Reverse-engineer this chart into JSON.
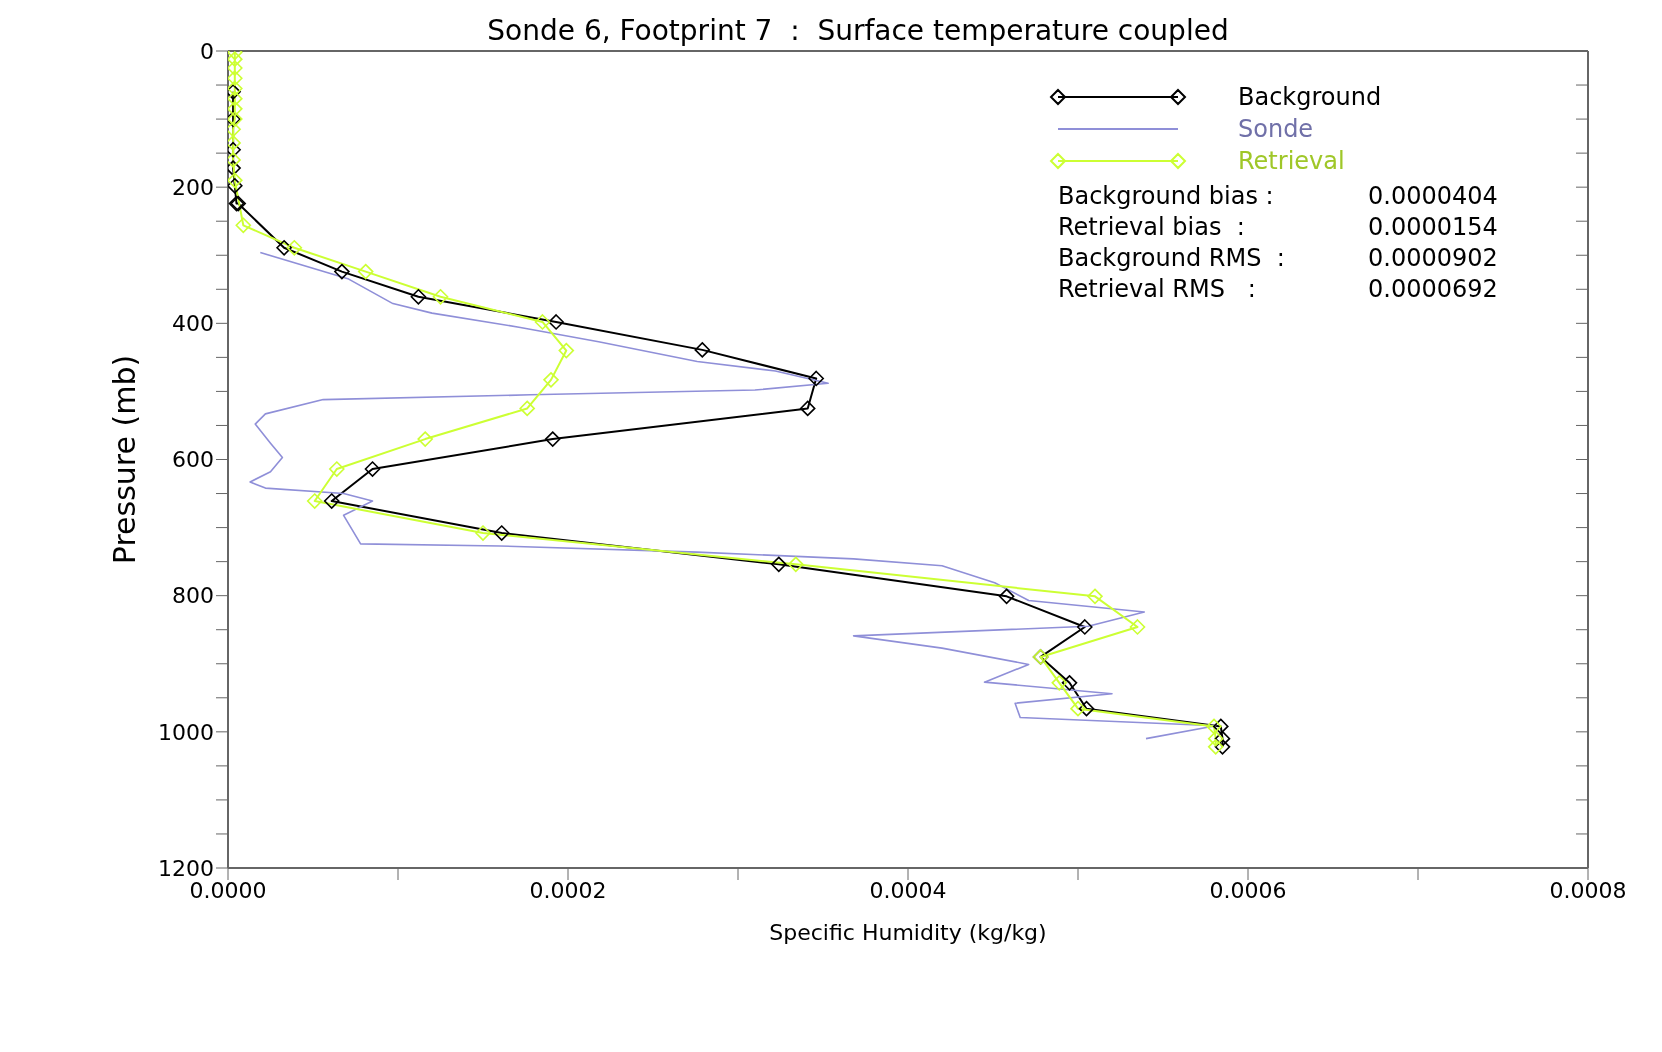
{
  "chart_data": {
    "type": "line",
    "title": "Sonde 6, Footprint 7  :  Surface temperature coupled",
    "xlabel": "Specific Humidity (kg/kg)",
    "ylabel": "Pressure (mb)",
    "xlim": [
      0,
      0.0008
    ],
    "xticks": [
      {
        "value": 0,
        "label": "0.0000"
      },
      {
        "value": 0.0001,
        "label": null
      },
      {
        "value": 0.0002,
        "label": "0.0002"
      },
      {
        "value": 0.0003,
        "label": null
      },
      {
        "value": 0.0004,
        "label": "0.0004"
      },
      {
        "value": 0.0005,
        "label": null
      },
      {
        "value": 0.0006,
        "label": "0.0006"
      },
      {
        "value": 0.0007,
        "label": null
      },
      {
        "value": 0.0008,
        "label": "0.0008"
      }
    ],
    "ylim": [
      1200,
      0
    ],
    "yticks": [
      0,
      {
        "value": 50,
        "label": null
      },
      {
        "value": 100,
        "label": null
      },
      {
        "value": 150,
        "label": null
      },
      200,
      {
        "value": 250,
        "label": null
      },
      {
        "value": 300,
        "label": null
      },
      {
        "value": 350,
        "label": null
      },
      400,
      {
        "value": 450,
        "label": null
      },
      {
        "value": 500,
        "label": null
      },
      {
        "value": 550,
        "label": null
      },
      600,
      {
        "value": 650,
        "label": null
      },
      {
        "value": 700,
        "label": null
      },
      {
        "value": 750,
        "label": null
      },
      800,
      {
        "value": 850,
        "label": null
      },
      {
        "value": 900,
        "label": null
      },
      {
        "value": 950,
        "label": null
      },
      1000,
      {
        "value": 1050,
        "label": null
      },
      {
        "value": 1100,
        "label": null
      },
      {
        "value": 1150,
        "label": null
      },
      1200
    ],
    "legend": "top right",
    "series": [
      {
        "name": "Background",
        "color": "#000000",
        "marker": "diamond",
        "x": [
          3e-06,
          3e-06,
          3e-06,
          3e-06,
          4e-06,
          5e-06,
          6e-06,
          3.3e-05,
          6.7e-05,
          0.000112,
          0.000193,
          0.000279,
          0.000346,
          0.000341,
          0.000191,
          8.5e-05,
          6.1e-05,
          0.000161,
          0.000324,
          0.000458,
          0.000504,
          0.000478,
          0.000495,
          0.000505,
          0.000584,
          0.000585,
          0.000585
        ],
        "values": [
          60,
          100,
          145,
          172,
          198,
          224,
          224,
          289,
          324,
          361,
          398,
          439,
          481,
          525,
          570,
          614,
          661,
          708,
          754,
          801,
          846,
          890,
          928,
          966,
          992,
          1010,
          1022
        ]
      },
      {
        "name": "Sonde",
        "color": "#8f8fd8",
        "marker": "none",
        "x": [
          1.9e-05,
          7.1e-05,
          9.7e-05,
          0.00012,
          0.000172,
          0.000218,
          0.000276,
          0.000322,
          0.000353,
          0.00031,
          0.000178,
          5.6e-05,
          2.2e-05,
          1.6e-05,
          2.5e-05,
          3.2e-05,
          2.5e-05,
          1.3e-05,
          2.2e-05,
          6.8e-05,
          8.5e-05,
          6.8e-05,
          7.3e-05,
          7.8e-05,
          0.00016,
          0.000276,
          0.000368,
          0.00042,
          0.000451,
          0.000471,
          0.000539,
          0.000506,
          0.000368,
          0.00042,
          0.000471,
          0.000445,
          0.00052,
          0.000463,
          0.000466,
          0.000581,
          0.00054
        ],
        "values": [
          296,
          335,
          371,
          385,
          406,
          427,
          456,
          470,
          488,
          498,
          505,
          512,
          533,
          548,
          576,
          597,
          618,
          633,
          642,
          650,
          661,
          682,
          703,
          724,
          727,
          736,
          746,
          756,
          781,
          807,
          824,
          845,
          859,
          877,
          901,
          927,
          944,
          958,
          979,
          991,
          1010
        ]
      },
      {
        "name": "Retrieval",
        "color": "#ccff33",
        "marker": "diamond",
        "x": [
          4e-06,
          4e-06,
          4e-06,
          4e-06,
          4e-06,
          4e-06,
          4e-06,
          4e-06,
          3e-06,
          3e-06,
          3e-06,
          4e-06,
          9e-06,
          3.9e-05,
          8.1e-05,
          0.000125,
          0.000185,
          0.000199,
          0.00019,
          0.000176,
          0.000116,
          6.4e-05,
          5.1e-05,
          0.00015,
          0.000334,
          0.00051,
          0.000535,
          0.000478,
          0.000489,
          0.0005,
          0.00058,
          0.000581,
          0.000581
        ],
        "values": [
          2,
          12,
          25,
          40,
          55,
          70,
          85,
          100,
          115,
          135,
          160,
          190,
          256,
          289,
          324,
          361,
          398,
          440,
          483,
          525,
          570,
          614,
          661,
          708,
          754,
          801,
          846,
          890,
          928,
          966,
          992,
          1010,
          1022
        ]
      }
    ],
    "annotations": [
      "Background bias :",
      "0.0000404",
      "Retrieval bias  :",
      "0.0000154",
      "Background RMS  :",
      "0.0000902",
      "Retrieval RMS   :",
      "0.0000692"
    ]
  }
}
